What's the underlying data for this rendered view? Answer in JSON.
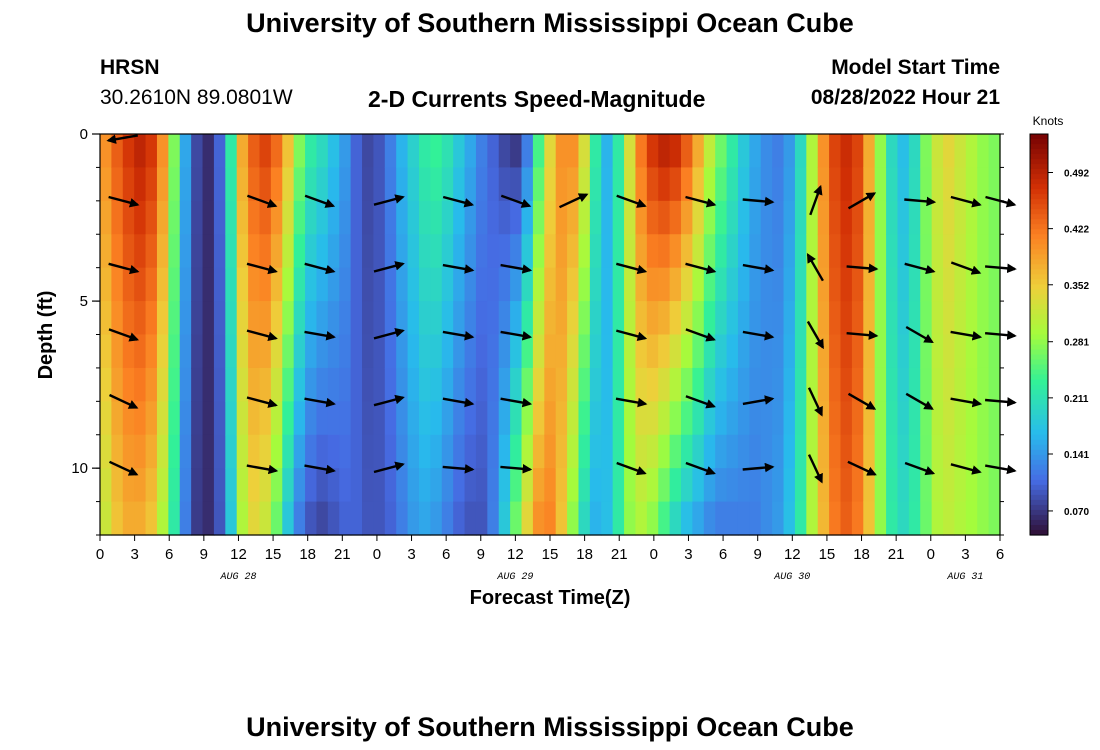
{
  "header": {
    "title": "University of Southern Mississippi Ocean Cube",
    "station": "HRSN",
    "coords": "30.2610N  89.0801W",
    "plot_title": "2-D Currents Speed-Magnitude",
    "model_label": "Model Start Time",
    "model_time": "08/28/2022 Hour 21"
  },
  "footer": {
    "title": "University of Southern Mississippi Ocean Cube"
  },
  "chart_data": {
    "type": "heatmap",
    "title": "2-D Currents Speed-Magnitude",
    "xlabel": "Forecast Time(Z)",
    "ylabel": "Depth (ft)",
    "x_tick_labels": [
      "0",
      "3",
      "6",
      "9",
      "12",
      "15",
      "18",
      "21",
      "0",
      "3",
      "6",
      "9",
      "12",
      "15",
      "18",
      "21",
      "0",
      "3",
      "6",
      "9",
      "12",
      "15",
      "18",
      "21",
      "0",
      "3",
      "6"
    ],
    "x_hours_range": [
      0,
      78
    ],
    "date_labels": [
      {
        "text": "AUG 28",
        "hour": 12
      },
      {
        "text": "AUG 29",
        "hour": 36
      },
      {
        "text": "AUG 30",
        "hour": 60
      },
      {
        "text": "AUG 31",
        "hour": 75
      }
    ],
    "y_tick_labels": [
      "0",
      "5",
      "10"
    ],
    "y_ticks": [
      0,
      5,
      10
    ],
    "ylim": [
      0,
      12
    ],
    "colorbar": {
      "title": "Knots",
      "ticks": [
        "0.492",
        "0.422",
        "0.352",
        "0.281",
        "0.211",
        "0.141",
        "0.070"
      ],
      "tick_values": [
        0.492,
        0.422,
        0.352,
        0.281,
        0.211,
        0.141,
        0.07
      ],
      "range": [
        0.04,
        0.54
      ]
    },
    "speed_profile": {
      "hours": [
        0,
        1,
        2,
        3,
        4,
        5,
        6,
        7,
        8,
        9,
        10,
        11,
        12,
        13,
        14,
        15,
        16,
        17,
        18,
        19,
        20,
        21,
        22,
        23,
        24,
        25,
        26,
        27,
        28,
        29,
        30,
        31,
        32,
        33,
        34,
        35,
        36,
        37,
        38,
        39,
        40,
        41,
        42,
        43,
        44,
        45,
        46,
        47,
        48,
        49,
        50,
        51,
        52,
        53,
        54,
        55,
        56,
        57,
        58,
        59,
        60,
        61,
        62,
        63,
        64,
        65,
        66,
        67,
        68,
        69,
        70,
        71,
        72,
        73,
        74,
        75,
        76,
        77,
        78
      ],
      "surface_knots": [
        0.4,
        0.44,
        0.47,
        0.49,
        0.47,
        0.4,
        0.27,
        0.15,
        0.08,
        0.06,
        0.1,
        0.22,
        0.38,
        0.44,
        0.46,
        0.43,
        0.36,
        0.27,
        0.22,
        0.2,
        0.17,
        0.14,
        0.1,
        0.08,
        0.09,
        0.12,
        0.16,
        0.19,
        0.22,
        0.23,
        0.21,
        0.18,
        0.15,
        0.12,
        0.1,
        0.08,
        0.07,
        0.12,
        0.24,
        0.34,
        0.4,
        0.4,
        0.33,
        0.22,
        0.16,
        0.22,
        0.33,
        0.42,
        0.47,
        0.49,
        0.48,
        0.44,
        0.38,
        0.31,
        0.26,
        0.22,
        0.18,
        0.15,
        0.13,
        0.12,
        0.14,
        0.2,
        0.3,
        0.4,
        0.46,
        0.48,
        0.46,
        0.38,
        0.28,
        0.2,
        0.17,
        0.2,
        0.27,
        0.32,
        0.34,
        0.32,
        0.3,
        0.28,
        0.27
      ],
      "bottom_knots": [
        0.32,
        0.36,
        0.38,
        0.38,
        0.36,
        0.3,
        0.22,
        0.12,
        0.07,
        0.06,
        0.09,
        0.18,
        0.3,
        0.34,
        0.32,
        0.26,
        0.18,
        0.12,
        0.09,
        0.08,
        0.09,
        0.1,
        0.1,
        0.09,
        0.09,
        0.1,
        0.12,
        0.14,
        0.15,
        0.14,
        0.12,
        0.1,
        0.09,
        0.09,
        0.12,
        0.18,
        0.26,
        0.34,
        0.4,
        0.41,
        0.36,
        0.28,
        0.2,
        0.16,
        0.17,
        0.22,
        0.28,
        0.3,
        0.28,
        0.24,
        0.2,
        0.17,
        0.15,
        0.13,
        0.12,
        0.12,
        0.12,
        0.12,
        0.13,
        0.14,
        0.17,
        0.22,
        0.3,
        0.37,
        0.42,
        0.44,
        0.42,
        0.36,
        0.28,
        0.22,
        0.2,
        0.22,
        0.26,
        0.3,
        0.31,
        0.3,
        0.29,
        0.28,
        0.27
      ]
    },
    "arrow_depths_ft": [
      0,
      2,
      4,
      6,
      8,
      10,
      12
    ],
    "arrow_hours": [
      2,
      8.5,
      14,
      19,
      25,
      31,
      36,
      41,
      46,
      52,
      57,
      62,
      66,
      71,
      75,
      78
    ],
    "arrow_rows": [
      [
        190,
        null,
        null,
        null,
        null,
        null,
        null,
        null,
        null,
        null,
        null,
        null,
        null,
        null,
        null,
        null
      ],
      [
        -15,
        null,
        -20,
        -20,
        15,
        -15,
        -20,
        25,
        -20,
        -15,
        -5,
        70,
        30,
        -5,
        -15,
        -15
      ],
      [
        -15,
        null,
        -15,
        -15,
        15,
        -10,
        -10,
        null,
        -15,
        -15,
        -10,
        120,
        -5,
        -15,
        -20,
        -5
      ],
      [
        -20,
        null,
        -15,
        -10,
        15,
        -10,
        -10,
        null,
        -15,
        -20,
        -10,
        -60,
        -5,
        -30,
        -10,
        -5
      ],
      [
        -25,
        null,
        -15,
        -10,
        15,
        -10,
        -10,
        null,
        -10,
        -20,
        10,
        -65,
        -30,
        -30,
        -10,
        -5
      ],
      [
        -25,
        null,
        -10,
        -10,
        15,
        -5,
        -5,
        null,
        -20,
        -20,
        5,
        -65,
        -25,
        -20,
        -15,
        -10
      ],
      [
        null,
        null,
        null,
        null,
        null,
        null,
        null,
        null,
        null,
        null,
        null,
        null,
        null,
        null,
        null,
        null
      ]
    ]
  }
}
